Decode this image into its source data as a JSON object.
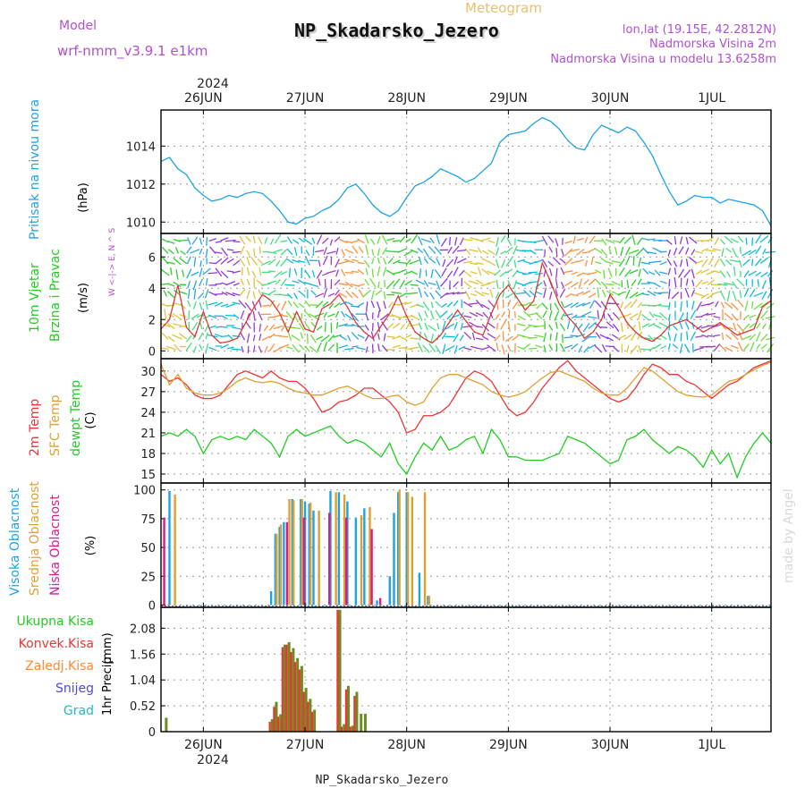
{
  "header": {
    "model_label": "Model",
    "model_name": "wrf-nmm_v3.9.1 e1km",
    "product": "Meteogram",
    "station": "NP_Skadarsko_Jezero",
    "lonlat": "lon,lat (19.15E, 42.2812N)",
    "elevation": "Nadmorska Visina 2m",
    "model_elevation": "Nadmorska Visina u modelu 13.6258m",
    "credit": "made by Angel",
    "footer_station": "NP_Skadarsko_Jezero"
  },
  "time_axis": {
    "year": "2024",
    "day_labels": [
      "26JUN",
      "27JUN",
      "28JUN",
      "29JUN",
      "30JUN",
      "1JUL"
    ],
    "day_start_hour": [
      0,
      24,
      48,
      72,
      96,
      120
    ],
    "hour_range": [
      -10,
      134
    ]
  },
  "colors": {
    "pressure": "#1ca3e3",
    "wind_speed_red": "#e53935",
    "wind_speed_black": "#000000",
    "temp_2m": "#ee3333",
    "temp_sfc": "#e0a030",
    "dewpoint": "#22cc22",
    "cloud_high": "#1ca3e3",
    "cloud_mid": "#e0a030",
    "cloud_low": "#d81b8a",
    "precip_total": "#22cc22",
    "precip_conv": "#ee3333",
    "precip_frozen": "#ff8a33",
    "snow": "#4a4adf",
    "hail": "#22bbbb"
  },
  "chart_data": [
    {
      "type": "line",
      "panel": "pressure",
      "ylabel_main": "Pritisak na nivou mora",
      "ylabel_unit": "(hPa)",
      "yticks": [
        1010,
        1012,
        1014
      ],
      "ylim": [
        1009.4,
        1015.9
      ],
      "grid": true,
      "series": [
        {
          "x": [
            -10,
            -8,
            -6,
            -4,
            -2,
            0,
            2,
            4,
            6,
            8,
            10,
            12,
            14,
            16,
            18,
            20,
            22,
            24,
            26,
            28,
            30,
            32,
            34,
            36,
            38,
            40,
            42,
            44,
            46,
            48,
            50,
            52,
            54,
            56,
            58,
            60,
            62,
            64,
            66,
            68,
            70,
            72,
            74,
            76,
            78,
            80,
            82,
            84,
            86,
            88,
            90,
            92,
            94,
            96,
            98,
            100,
            102,
            104,
            106,
            108,
            110,
            112,
            114,
            116,
            118,
            120,
            122,
            124,
            126,
            128,
            130,
            132,
            134
          ],
          "values": [
            1013.2,
            1013.4,
            1012.8,
            1012.5,
            1011.8,
            1011.4,
            1011.1,
            1011.2,
            1011.4,
            1011.3,
            1011.5,
            1011.6,
            1011.5,
            1011.1,
            1010.6,
            1010.0,
            1009.9,
            1010.2,
            1010.3,
            1010.6,
            1010.8,
            1011.2,
            1011.8,
            1012.0,
            1011.5,
            1010.9,
            1010.5,
            1010.3,
            1010.6,
            1011.3,
            1011.9,
            1012.1,
            1012.4,
            1012.8,
            1012.6,
            1012.4,
            1012.1,
            1012.3,
            1012.7,
            1013.1,
            1014.2,
            1014.6,
            1014.7,
            1014.8,
            1015.2,
            1015.5,
            1015.3,
            1014.9,
            1014.3,
            1013.9,
            1013.8,
            1014.6,
            1015.1,
            1014.9,
            1014.7,
            1015.0,
            1014.8,
            1014.2,
            1013.5,
            1012.5,
            1011.6,
            1010.9,
            1011.1,
            1011.4,
            1011.3,
            1011.3,
            1011.0,
            1011.2,
            1011.1,
            1011.0,
            1010.9,
            1010.6,
            1009.8
          ]
        }
      ]
    },
    {
      "type": "line",
      "panel": "wind",
      "ylabel_main": "10m Vjetar",
      "ylabel_sub": "Brzina i Pravac",
      "ylabel_unit": "(m/s)",
      "compass": "W <-|-> E, N ^ S",
      "yticks": [
        0,
        2,
        4,
        6
      ],
      "ylim": [
        -0.5,
        7.5
      ],
      "grid": true,
      "series": [
        {
          "name": "",
          "x": [
            -10,
            -8,
            -6,
            -4,
            -2,
            0,
            2,
            4,
            6,
            8,
            10,
            12,
            14,
            16,
            18,
            20,
            22,
            24,
            26,
            28,
            30,
            32,
            34,
            36,
            38,
            40,
            42,
            44,
            46,
            48,
            50,
            52,
            54,
            56,
            58,
            60,
            62,
            64,
            66,
            68,
            70,
            72,
            74,
            76,
            78,
            80,
            82,
            84,
            86,
            88,
            90,
            92,
            94,
            96,
            98,
            100,
            102,
            104,
            106,
            108,
            110,
            112,
            114,
            116,
            118,
            120,
            122,
            124,
            126,
            128,
            130,
            132,
            134
          ],
          "values": [
            1.4,
            2.0,
            4.2,
            1.5,
            0.9,
            2.5,
            1.0,
            0.5,
            0.6,
            0.8,
            1.8,
            2.8,
            3.6,
            3.2,
            2.4,
            1.2,
            2.5,
            1.4,
            1.2,
            2.7,
            3.0,
            3.6,
            2.8,
            1.8,
            1.2,
            0.8,
            1.6,
            2.4,
            3.5,
            2.2,
            1.2,
            0.8,
            0.5,
            1.0,
            1.8,
            2.6,
            1.9,
            1.2,
            1.0,
            2.4,
            3.6,
            4.2,
            3.4,
            2.6,
            3.2,
            5.6,
            4.4,
            3.0,
            2.2,
            1.6,
            0.8,
            1.2,
            2.0,
            3.6,
            2.8,
            1.8,
            1.2,
            0.8,
            0.6,
            1.0,
            1.6,
            1.8,
            2.0,
            1.6,
            1.2,
            1.5,
            1.8,
            1.4,
            1.0,
            1.2,
            1.4,
            2.8,
            3.2
          ]
        }
      ]
    },
    {
      "type": "line",
      "panel": "temperature",
      "ylabel_main": [
        "2m Temp",
        "SFC Temp",
        "dewpt Temp"
      ],
      "ylabel_unit": "(C)",
      "yticks": [
        15,
        18,
        21,
        24,
        27,
        30
      ],
      "ylim": [
        13.7,
        31.8
      ],
      "grid": true,
      "x": [
        -10,
        -8,
        -6,
        -4,
        -2,
        0,
        2,
        4,
        6,
        8,
        10,
        12,
        14,
        16,
        18,
        20,
        22,
        24,
        26,
        28,
        30,
        32,
        34,
        36,
        38,
        40,
        42,
        44,
        46,
        48,
        50,
        52,
        54,
        56,
        58,
        60,
        62,
        64,
        66,
        68,
        70,
        72,
        74,
        76,
        78,
        80,
        82,
        84,
        86,
        88,
        90,
        92,
        94,
        96,
        98,
        100,
        102,
        104,
        106,
        108,
        110,
        112,
        114,
        116,
        118,
        120,
        122,
        124,
        126,
        128,
        130,
        132,
        134
      ],
      "series": [
        {
          "name": "2m Temp",
          "values": [
            29.5,
            28.5,
            29.0,
            28.0,
            26.5,
            26.0,
            26.0,
            26.5,
            28.0,
            29.5,
            30.0,
            29.5,
            29.0,
            30.0,
            29.0,
            28.5,
            28.5,
            27.5,
            26.0,
            24.0,
            24.5,
            25.5,
            25.8,
            26.5,
            27.5,
            27.5,
            26.5,
            25.5,
            24.0,
            21.0,
            21.5,
            23.5,
            23.5,
            24.0,
            25.0,
            27.0,
            29.0,
            30.0,
            29.5,
            28.5,
            26.5,
            24.5,
            23.5,
            24.0,
            25.5,
            27.5,
            29.0,
            30.5,
            31.5,
            30.0,
            29.0,
            28.0,
            27.0,
            26.0,
            25.5,
            26.0,
            27.5,
            29.5,
            31.0,
            30.5,
            29.5,
            29.5,
            28.5,
            28.0,
            27.0,
            26.0,
            27.0,
            28.0,
            28.5,
            29.5,
            30.5,
            31.0,
            31.5
          ]
        },
        {
          "name": "SFC Temp",
          "values": [
            31.0,
            28.0,
            29.5,
            27.5,
            26.8,
            26.5,
            26.5,
            26.8,
            27.5,
            28.5,
            29.0,
            28.5,
            28.3,
            28.5,
            28.2,
            27.5,
            27.0,
            26.8,
            26.5,
            26.5,
            27.0,
            27.5,
            27.8,
            27.2,
            26.5,
            26.0,
            26.0,
            26.3,
            26.5,
            25.5,
            25.0,
            25.5,
            27.5,
            29.0,
            29.5,
            29.5,
            29.0,
            28.5,
            28.0,
            27.0,
            26.5,
            26.2,
            26.5,
            27.0,
            28.0,
            29.0,
            29.8,
            30.0,
            29.5,
            29.0,
            28.5,
            27.5,
            26.8,
            26.5,
            26.5,
            27.5,
            29.0,
            30.5,
            30.0,
            29.0,
            28.0,
            27.0,
            26.5,
            26.3,
            26.2,
            26.5,
            27.5,
            28.5,
            28.8,
            29.5,
            30.2,
            30.8,
            31.3
          ]
        },
        {
          "name": "dewpt Temp",
          "values": [
            20.5,
            21.0,
            20.5,
            21.5,
            20.5,
            18.0,
            20.0,
            20.5,
            20.0,
            20.5,
            20.0,
            21.5,
            20.5,
            19.5,
            17.5,
            20.5,
            21.5,
            20.5,
            21.0,
            21.5,
            22.0,
            20.5,
            19.5,
            20.0,
            19.5,
            18.5,
            17.5,
            19.5,
            16.5,
            15.0,
            17.5,
            19.5,
            18.5,
            20.5,
            18.5,
            19.0,
            20.0,
            20.5,
            18.0,
            21.5,
            20.0,
            17.5,
            17.5,
            17.0,
            17.0,
            17.0,
            17.5,
            18.0,
            20.5,
            20.0,
            19.5,
            18.5,
            17.5,
            16.5,
            17.0,
            20.0,
            20.5,
            21.5,
            20.0,
            19.0,
            18.0,
            19.0,
            18.5,
            17.5,
            16.0,
            18.5,
            16.5,
            18.0,
            14.5,
            17.5,
            19.5,
            21.0,
            19.5
          ]
        }
      ]
    },
    {
      "type": "bar",
      "panel": "clouds",
      "ylabel_main": [
        "Visoka Oblacnost",
        "Srednja Oblacnost",
        "Niska Oblacnost"
      ],
      "ylabel_unit": "(%)",
      "yticks": [
        0,
        25,
        50,
        75,
        100
      ],
      "ylim": [
        -2,
        106
      ],
      "grid": true,
      "series": [
        {
          "name": "Visoka Oblacnost",
          "x": [
            -8,
            -6,
            16,
            17,
            18,
            19,
            20,
            21,
            22,
            23,
            24,
            25,
            26,
            27,
            28,
            29,
            30,
            31,
            32,
            33,
            34,
            35,
            36,
            37,
            38,
            39,
            40,
            41,
            42,
            44,
            45,
            46,
            47,
            48,
            49,
            50,
            51,
            52,
            53,
            54
          ],
          "values": [
            99,
            0,
            12,
            62,
            68,
            72,
            0,
            92,
            0,
            92,
            90,
            88,
            82,
            0,
            0,
            0,
            99,
            0,
            98,
            0,
            90,
            0,
            76,
            0,
            84,
            0,
            0,
            4,
            0,
            25,
            80,
            98,
            0,
            98,
            0,
            0,
            28,
            0,
            8,
            0
          ]
        },
        {
          "name": "Srednja Oblacnost",
          "x": [
            -7,
            16,
            17,
            18,
            19,
            20,
            21,
            22,
            23,
            24,
            25,
            26,
            27,
            31,
            33,
            35,
            37,
            39,
            40,
            43,
            46,
            47,
            48,
            49,
            50,
            51,
            52,
            53
          ],
          "values": [
            96,
            0,
            62,
            70,
            0,
            92,
            91,
            0,
            92,
            0,
            89,
            0,
            82,
            98,
            96,
            0,
            78,
            85,
            0,
            0,
            100,
            0,
            98,
            94,
            0,
            0,
            98,
            8
          ]
        },
        {
          "name": "Niska Oblacnost",
          "x": [
            -9,
            18,
            20,
            22,
            24,
            26,
            28,
            30,
            32,
            34,
            36,
            38,
            40,
            42,
            46,
            48,
            52
          ],
          "values": [
            76,
            0,
            72,
            0,
            76,
            0,
            0,
            80,
            0,
            76,
            0,
            0,
            66,
            6,
            0,
            0,
            0
          ]
        }
      ]
    },
    {
      "type": "bar",
      "panel": "precip",
      "ylabel_main": "1hr Precip",
      "ylabel_unit": "(mm)",
      "legend": [
        "Ukupna Kisa",
        "Konvek.Kisa",
        "Zaledj.Kisa",
        "Snijeg",
        "Grad"
      ],
      "yticks": [
        0,
        0.52,
        1.04,
        1.56,
        2.08
      ],
      "ylim": [
        0,
        2.5
      ],
      "grid": true,
      "series": [
        {
          "name": "Ukupna Kisa",
          "x": [
            -9,
            16,
            17,
            18,
            19,
            20,
            21,
            22,
            23,
            24,
            25,
            26,
            32,
            33,
            34,
            35,
            36,
            37,
            38
          ],
          "values": [
            0.28,
            0.25,
            0.6,
            0.35,
            1.75,
            1.8,
            1.68,
            1.48,
            1.32,
            0.88,
            0.66,
            0.44,
            2.45,
            0.15,
            0.92,
            0.12,
            0.8,
            0.36,
            0.36
          ]
        },
        {
          "name": "Konvek.Kisa",
          "x": [
            16,
            17,
            18,
            19,
            20,
            21,
            22,
            23,
            24,
            25,
            26,
            32,
            33,
            34,
            35,
            36
          ],
          "values": [
            0.2,
            0.5,
            0.3,
            1.7,
            1.75,
            1.6,
            1.4,
            1.25,
            0.8,
            0.6,
            0.4,
            2.45,
            0.1,
            0.85,
            0.1,
            0.72
          ]
        }
      ]
    }
  ]
}
